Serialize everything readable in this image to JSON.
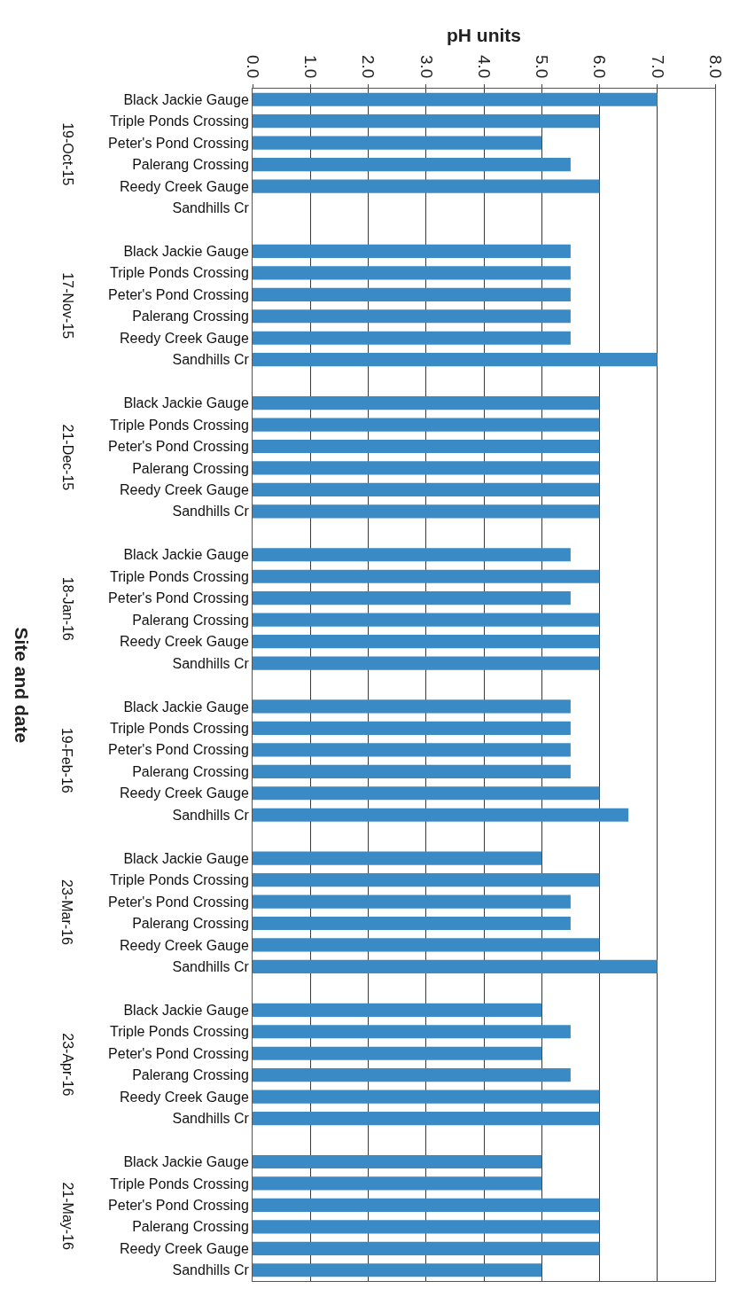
{
  "chart_data": {
    "type": "bar",
    "orientation": "horizontal",
    "xlabel": "pH units",
    "ylabel": "Site and date",
    "categories": [
      "Black Jackie Gauge",
      "Triple Ponds Crossing",
      "Peter's Pond Crossing",
      "Palerang Crossing",
      "Reedy Creek Gauge",
      "Sandhills Cr",
      null,
      "Black Jackie Gauge",
      "Triple Ponds Crossing",
      "Peter's Pond Crossing",
      "Palerang Crossing",
      "Reedy Creek Gauge",
      "Sandhills Cr",
      null,
      "Black Jackie Gauge",
      "Triple Ponds Crossing",
      "Peter's Pond Crossing",
      "Palerang Crossing",
      "Reedy Creek Gauge",
      "Sandhills Cr",
      null,
      "Black Jackie Gauge",
      "Triple Ponds Crossing",
      "Peter's Pond Crossing",
      "Palerang Crossing",
      "Reedy Creek Gauge",
      "Sandhills Cr",
      null,
      "Black Jackie Gauge",
      "Triple Ponds Crossing",
      "Peter's Pond Crossing",
      "Palerang Crossing",
      "Reedy Creek Gauge",
      "Sandhills Cr",
      null,
      "Black Jackie Gauge",
      "Triple Ponds Crossing",
      "Peter's Pond Crossing",
      "Palerang Crossing",
      "Reedy Creek Gauge",
      "Sandhills Cr",
      null,
      "Black Jackie Gauge",
      "Triple Ponds Crossing",
      "Peter's Pond Crossing",
      "Palerang Crossing",
      "Reedy Creek Gauge",
      "Sandhills Cr",
      null,
      "Black Jackie Gauge",
      "Triple Ponds Crossing",
      "Peter's Pond Crossing",
      "Palerang Crossing",
      "Reedy Creek Gauge",
      "Sandhills Cr"
    ],
    "values": [
      7.0,
      6.0,
      5.0,
      5.5,
      6.0,
      null,
      null,
      5.5,
      5.5,
      5.5,
      5.5,
      5.5,
      7.0,
      null,
      6.0,
      6.0,
      6.0,
      6.0,
      6.0,
      6.0,
      null,
      5.5,
      6.0,
      5.5,
      6.0,
      6.0,
      6.0,
      null,
      5.5,
      5.5,
      5.5,
      5.5,
      6.0,
      6.5,
      null,
      5.0,
      6.0,
      5.5,
      5.5,
      6.0,
      7.0,
      null,
      5.0,
      5.5,
      5.0,
      5.5,
      6.0,
      6.0,
      null,
      5.0,
      5.0,
      6.0,
      6.0,
      6.0,
      5.0
    ],
    "color": "#3a8ac6",
    "xlim": [
      0,
      8
    ],
    "xticks": [
      {
        "value": 0,
        "label": "0.0"
      },
      {
        "value": 1,
        "label": "1.0"
      },
      {
        "value": 2,
        "label": "2.0"
      },
      {
        "value": 3,
        "label": "3.0"
      },
      {
        "value": 4,
        "label": "4.0"
      },
      {
        "value": 5,
        "label": "5.0"
      },
      {
        "value": 6,
        "label": "6.0"
      },
      {
        "value": 7,
        "label": "7.0"
      },
      {
        "value": 8,
        "label": "8.0"
      }
    ],
    "grid": "x",
    "annotations": [
      "19-Oct-15",
      "17-Nov-15",
      "21-Dec-15",
      "18-Jan-16",
      "19-Feb-16",
      "23-Mar-16",
      "23-Apr-16",
      "21-May-16"
    ]
  }
}
